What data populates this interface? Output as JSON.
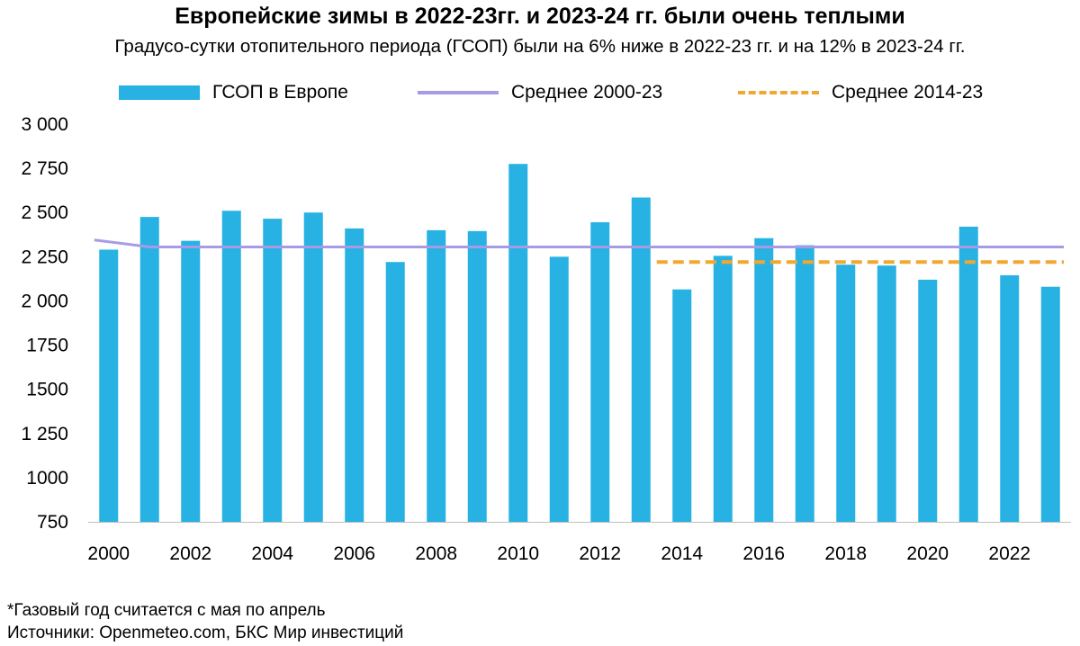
{
  "colors": {
    "bar": "#27b2e3",
    "avg_2000_23": "#a89be6",
    "avg_2014_23": "#f0a830",
    "axis": "#bfbfbf"
  },
  "chart_data": {
    "type": "bar",
    "title": "Европейские зимы в 2022-23гг. и 2023-24 гг. были очень теплыми",
    "subtitle": "Градусо-сутки отопительного периода (ГСОП) были на 6% ниже в 2022-23 гг. и на 12% в 2023-24 гг.",
    "legend_placement": "top",
    "legend": [
      "ГСОП в Европе",
      "Среднее 2000-23",
      "Среднее 2014-23"
    ],
    "x": [
      2000,
      2001,
      2002,
      2003,
      2004,
      2005,
      2006,
      2007,
      2008,
      2009,
      2010,
      2011,
      2012,
      2013,
      2014,
      2015,
      2016,
      2017,
      2018,
      2019,
      2020,
      2021,
      2022,
      2023
    ],
    "x_tick_labels": [
      "2000",
      "2002",
      "2004",
      "2006",
      "2008",
      "2010",
      "2012",
      "2014",
      "2016",
      "2018",
      "2020",
      "2022"
    ],
    "y_tick_values": [
      750,
      1000,
      1250,
      1500,
      1750,
      2000,
      2250,
      2500,
      2750,
      3000
    ],
    "y_tick_labels": [
      "750",
      "1000",
      "1 250",
      "1500",
      "1750",
      "2 000",
      "2 250",
      "2 500",
      "2 750",
      "3 000"
    ],
    "ylim": [
      750,
      3000
    ],
    "series": [
      {
        "name": "ГСОП в Европе",
        "type": "bar",
        "values": [
          2290,
          2475,
          2340,
          2510,
          2465,
          2500,
          2410,
          2220,
          2400,
          2395,
          2775,
          2250,
          2445,
          2585,
          2065,
          2255,
          2355,
          2315,
          2205,
          2200,
          2120,
          2420,
          2145,
          2080
        ]
      },
      {
        "name": "Среднее 2000-23",
        "type": "line",
        "values": [
          2345,
          2305,
          2305,
          2305,
          2305,
          2305,
          2305,
          2305,
          2305,
          2305,
          2305,
          2305,
          2305,
          2305,
          2305,
          2305,
          2305,
          2305,
          2305,
          2305,
          2305,
          2305,
          2305,
          2305
        ]
      },
      {
        "name": "Среднее 2014-23",
        "type": "line-dashed",
        "start_year": 2014,
        "value": 2220
      }
    ]
  },
  "footnotes": {
    "note": "*Газовый год считается с мая по апрель",
    "sources": "Источники: Openmeteo.com, БКС Мир инвестиций"
  }
}
